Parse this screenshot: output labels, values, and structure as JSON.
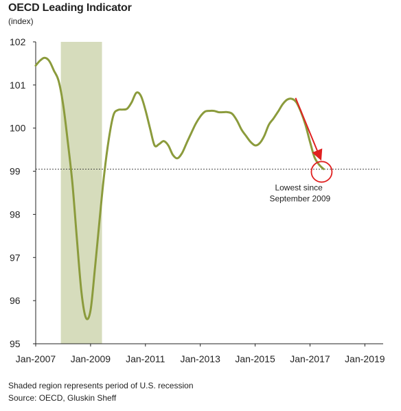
{
  "chart_data": {
    "type": "line",
    "title": "OECD Leading Indicator",
    "unit_label": "(index)",
    "xlabel": "",
    "ylabel": "",
    "ylim": [
      95,
      102
    ],
    "y_ticks": [
      "95",
      "96",
      "97",
      "98",
      "99",
      "100",
      "101",
      "102"
    ],
    "x_ticks": [
      "Jan-2007",
      "Jan-2009",
      "Jan-2011",
      "Jan-2013",
      "Jan-2015",
      "Jan-2017",
      "Jan-2019"
    ],
    "x_range": [
      "Jan-2007",
      "Sep-2019"
    ],
    "grid": false,
    "line_color": "#8b9b3c",
    "recession": {
      "start": "Dec-2007",
      "end": "Jun-2009",
      "color": "#d6dcbc"
    },
    "reference_line": {
      "y": 99.05,
      "style": "dotted"
    },
    "series": [
      {
        "points": [
          [
            "Jan-2007",
            101.45
          ],
          [
            "Mar-2007",
            101.57
          ],
          [
            "May-2007",
            101.63
          ],
          [
            "Jul-2007",
            101.55
          ],
          [
            "Sep-2007",
            101.33
          ],
          [
            "Nov-2007",
            101.1
          ],
          [
            "Jan-2008",
            100.55
          ],
          [
            "Mar-2008",
            99.7
          ],
          [
            "May-2008",
            98.75
          ],
          [
            "Jul-2008",
            97.45
          ],
          [
            "Sep-2008",
            96.2
          ],
          [
            "Nov-2008",
            95.6
          ],
          [
            "Jan-2009",
            95.78
          ],
          [
            "Mar-2009",
            96.8
          ],
          [
            "May-2009",
            97.9
          ],
          [
            "Jul-2009",
            98.95
          ],
          [
            "Sep-2009",
            99.75
          ],
          [
            "Nov-2009",
            100.3
          ],
          [
            "Jan-2010",
            100.42
          ],
          [
            "Mar-2010",
            100.43
          ],
          [
            "May-2010",
            100.45
          ],
          [
            "Jul-2010",
            100.6
          ],
          [
            "Sep-2010",
            100.82
          ],
          [
            "Nov-2010",
            100.75
          ],
          [
            "Jan-2011",
            100.42
          ],
          [
            "Mar-2011",
            100.0
          ],
          [
            "May-2011",
            99.6
          ],
          [
            "Jul-2011",
            99.63
          ],
          [
            "Sep-2011",
            99.7
          ],
          [
            "Nov-2011",
            99.6
          ],
          [
            "Jan-2012",
            99.38
          ],
          [
            "Mar-2012",
            99.3
          ],
          [
            "May-2012",
            99.42
          ],
          [
            "Jul-2012",
            99.65
          ],
          [
            "Sep-2012",
            99.88
          ],
          [
            "Nov-2012",
            100.1
          ],
          [
            "Jan-2013",
            100.27
          ],
          [
            "Mar-2013",
            100.38
          ],
          [
            "May-2013",
            100.4
          ],
          [
            "Jul-2013",
            100.4
          ],
          [
            "Sep-2013",
            100.37
          ],
          [
            "Nov-2013",
            100.37
          ],
          [
            "Jan-2014",
            100.37
          ],
          [
            "Mar-2014",
            100.33
          ],
          [
            "May-2014",
            100.18
          ],
          [
            "Jul-2014",
            99.97
          ],
          [
            "Sep-2014",
            99.82
          ],
          [
            "Nov-2014",
            99.68
          ],
          [
            "Jan-2015",
            99.6
          ],
          [
            "Mar-2015",
            99.65
          ],
          [
            "May-2015",
            99.82
          ],
          [
            "Jul-2015",
            100.08
          ],
          [
            "Sep-2015",
            100.22
          ],
          [
            "Nov-2015",
            100.38
          ],
          [
            "Jan-2016",
            100.55
          ],
          [
            "Mar-2016",
            100.66
          ],
          [
            "May-2016",
            100.68
          ],
          [
            "Jul-2016",
            100.6
          ],
          [
            "Sep-2016",
            100.38
          ],
          [
            "Nov-2016",
            100.08
          ],
          [
            "Jan-2017",
            99.68
          ],
          [
            "Mar-2017",
            99.32
          ],
          [
            "May-2017",
            99.15
          ],
          [
            "Jul-2017",
            99.05
          ]
        ]
      }
    ],
    "annotation": {
      "text_line1": "Lowest since",
      "text_line2": "September 2009",
      "marker_color": "#e02020"
    }
  },
  "footnotes": {
    "line1": "Shaded region represents period of U.S. recession",
    "line2": "Source: OECD, Gluskin Sheff"
  }
}
